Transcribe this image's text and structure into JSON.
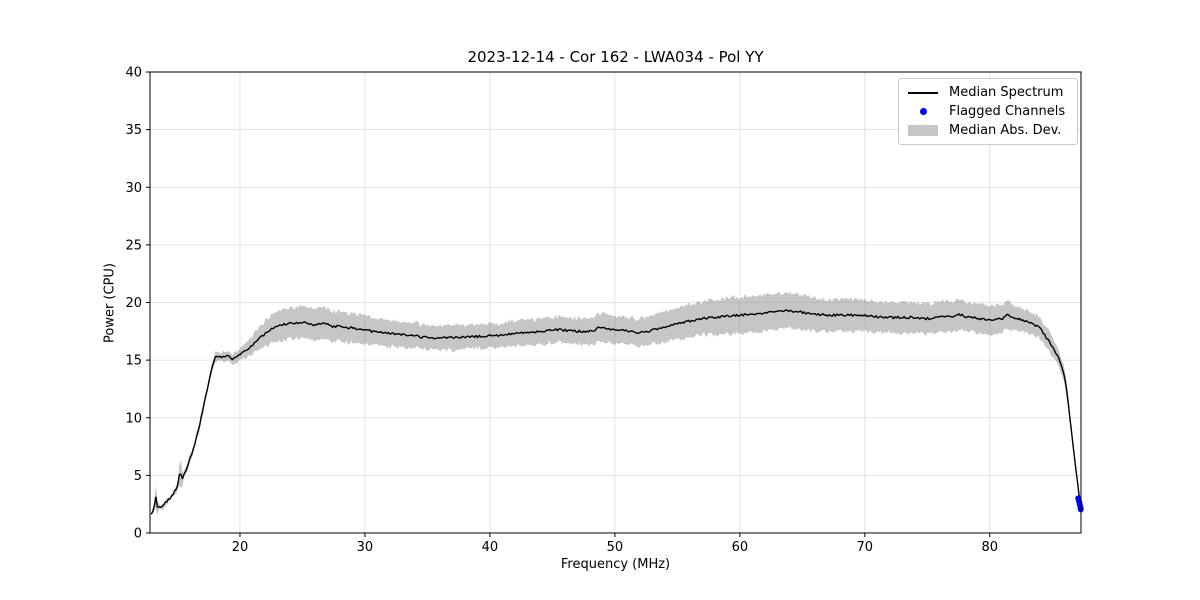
{
  "chart_data": {
    "type": "line",
    "title": "2023-12-14 - Cor 162 - LWA034 - Pol YY",
    "xlabel": "Frequency (MHz)",
    "ylabel": "Power (CPU)",
    "xlim": [
      12.8,
      87.3
    ],
    "ylim": [
      0,
      40
    ],
    "xticks": [
      20,
      30,
      40,
      50,
      60,
      70,
      80
    ],
    "yticks": [
      0,
      5,
      10,
      15,
      20,
      25,
      30,
      35,
      40
    ],
    "grid": true,
    "legend_position": "upper right",
    "legend": [
      {
        "label": "Median Spectrum",
        "type": "line",
        "color": "#000000"
      },
      {
        "label": "Flagged Channels",
        "type": "dot",
        "color": "#0000ff"
      },
      {
        "label": "Median Abs. Dev.",
        "type": "band",
        "color": "rgba(128,128,128,0.45)"
      }
    ],
    "series": {
      "median_spectrum": {
        "name": "Median Spectrum",
        "color": "#000000",
        "control_points": [
          [
            12.9,
            1.6
          ],
          [
            13.1,
            2.0
          ],
          [
            13.25,
            3.3
          ],
          [
            13.4,
            2.2
          ],
          [
            13.8,
            2.4
          ],
          [
            14.2,
            2.8
          ],
          [
            14.6,
            3.3
          ],
          [
            15.0,
            4.0
          ],
          [
            15.2,
            5.3
          ],
          [
            15.4,
            4.8
          ],
          [
            15.8,
            5.8
          ],
          [
            16.2,
            7.0
          ],
          [
            16.6,
            8.6
          ],
          [
            17.0,
            10.5
          ],
          [
            17.4,
            12.6
          ],
          [
            17.8,
            14.6
          ],
          [
            18.0,
            15.2
          ],
          [
            18.3,
            15.4
          ],
          [
            18.6,
            15.3
          ],
          [
            19.0,
            15.4
          ],
          [
            19.35,
            15.05
          ],
          [
            19.6,
            15.3
          ],
          [
            20.0,
            15.5
          ],
          [
            20.5,
            15.8
          ],
          [
            21.0,
            16.3
          ],
          [
            21.5,
            16.8
          ],
          [
            22.0,
            17.3
          ],
          [
            22.5,
            17.7
          ],
          [
            23.0,
            18.0
          ],
          [
            23.5,
            18.1
          ],
          [
            24.0,
            18.2
          ],
          [
            24.5,
            18.25
          ],
          [
            25.0,
            18.3
          ],
          [
            25.5,
            18.1
          ],
          [
            26.0,
            18.0
          ],
          [
            26.5,
            18.2
          ],
          [
            27.0,
            18.1
          ],
          [
            27.5,
            17.9
          ],
          [
            28.0,
            18.0
          ],
          [
            28.5,
            17.8
          ],
          [
            29.0,
            17.8
          ],
          [
            29.5,
            17.7
          ],
          [
            30.0,
            17.7
          ],
          [
            30.5,
            17.5
          ],
          [
            31.0,
            17.5
          ],
          [
            31.5,
            17.4
          ],
          [
            32.0,
            17.3
          ],
          [
            32.5,
            17.3
          ],
          [
            33.0,
            17.2
          ],
          [
            33.5,
            17.1
          ],
          [
            34.0,
            17.1
          ],
          [
            34.5,
            17.0
          ],
          [
            35.0,
            17.0
          ],
          [
            35.5,
            16.95
          ],
          [
            36.0,
            16.9
          ],
          [
            36.5,
            16.95
          ],
          [
            37.0,
            17.0
          ],
          [
            37.5,
            17.0
          ],
          [
            38.0,
            17.0
          ],
          [
            38.5,
            17.0
          ],
          [
            39.0,
            17.05
          ],
          [
            39.5,
            17.05
          ],
          [
            40.0,
            17.1
          ],
          [
            41.0,
            17.2
          ],
          [
            42.0,
            17.3
          ],
          [
            43.0,
            17.4
          ],
          [
            44.0,
            17.5
          ],
          [
            45.0,
            17.6
          ],
          [
            45.5,
            17.65
          ],
          [
            46.0,
            17.6
          ],
          [
            46.5,
            17.55
          ],
          [
            47.0,
            17.5
          ],
          [
            47.5,
            17.5
          ],
          [
            48.0,
            17.5
          ],
          [
            48.4,
            17.55
          ],
          [
            48.6,
            17.8
          ],
          [
            49.0,
            17.75
          ],
          [
            49.5,
            17.7
          ],
          [
            50.0,
            17.7
          ],
          [
            50.5,
            17.6
          ],
          [
            51.0,
            17.5
          ],
          [
            51.5,
            17.45
          ],
          [
            52.0,
            17.4
          ],
          [
            52.3,
            17.5
          ],
          [
            52.6,
            17.45
          ],
          [
            53.0,
            17.6
          ],
          [
            53.5,
            17.75
          ],
          [
            54.0,
            17.9
          ],
          [
            54.5,
            18.05
          ],
          [
            55.0,
            18.2
          ],
          [
            55.5,
            18.3
          ],
          [
            56.0,
            18.4
          ],
          [
            56.5,
            18.5
          ],
          [
            57.0,
            18.6
          ],
          [
            57.5,
            18.65
          ],
          [
            58.0,
            18.7
          ],
          [
            58.5,
            18.75
          ],
          [
            59.0,
            18.8
          ],
          [
            59.5,
            18.85
          ],
          [
            60.0,
            18.9
          ],
          [
            60.5,
            18.95
          ],
          [
            61.0,
            19.0
          ],
          [
            61.5,
            19.05
          ],
          [
            62.0,
            19.1
          ],
          [
            62.5,
            19.2
          ],
          [
            63.0,
            19.3
          ],
          [
            63.5,
            19.3
          ],
          [
            64.0,
            19.25
          ],
          [
            64.5,
            19.2
          ],
          [
            65.0,
            19.15
          ],
          [
            65.5,
            19.05
          ],
          [
            66.0,
            19.0
          ],
          [
            66.5,
            18.95
          ],
          [
            67.0,
            18.9
          ],
          [
            67.5,
            18.9
          ],
          [
            68.0,
            18.9
          ],
          [
            68.5,
            18.9
          ],
          [
            69.0,
            18.9
          ],
          [
            69.5,
            18.85
          ],
          [
            70.0,
            18.85
          ],
          [
            70.5,
            18.8
          ],
          [
            71.0,
            18.75
          ],
          [
            71.5,
            18.7
          ],
          [
            72.0,
            18.7
          ],
          [
            72.5,
            18.7
          ],
          [
            73.0,
            18.7
          ],
          [
            73.5,
            18.7
          ],
          [
            74.0,
            18.7
          ],
          [
            74.5,
            18.65
          ],
          [
            75.0,
            18.6
          ],
          [
            75.5,
            18.65
          ],
          [
            76.0,
            18.7
          ],
          [
            76.5,
            18.75
          ],
          [
            77.0,
            18.8
          ],
          [
            77.4,
            19.0
          ],
          [
            77.7,
            18.9
          ],
          [
            78.0,
            18.8
          ],
          [
            78.5,
            18.7
          ],
          [
            79.0,
            18.6
          ],
          [
            79.5,
            18.55
          ],
          [
            80.0,
            18.5
          ],
          [
            80.5,
            18.55
          ],
          [
            81.0,
            18.6
          ],
          [
            81.4,
            18.9
          ],
          [
            81.8,
            18.7
          ],
          [
            82.2,
            18.6
          ],
          [
            82.6,
            18.45
          ],
          [
            83.0,
            18.3
          ],
          [
            83.5,
            18.1
          ],
          [
            84.0,
            17.8
          ],
          [
            84.5,
            17.0
          ],
          [
            85.0,
            16.2
          ],
          [
            85.3,
            15.6
          ],
          [
            85.6,
            15.0
          ],
          [
            85.9,
            14.0
          ],
          [
            86.1,
            12.8
          ],
          [
            86.3,
            11.0
          ],
          [
            86.5,
            9.2
          ],
          [
            86.7,
            7.3
          ],
          [
            86.9,
            5.5
          ],
          [
            87.0,
            4.5
          ],
          [
            87.1,
            3.6
          ],
          [
            87.2,
            2.9
          ],
          [
            87.3,
            2.3
          ]
        ]
      },
      "mad_band": {
        "name": "Median Abs. Dev.",
        "color": "rgba(128,128,128,0.45)",
        "half_width_control_points": [
          [
            12.9,
            0.15
          ],
          [
            13.1,
            0.3
          ],
          [
            13.25,
            1.2
          ],
          [
            13.5,
            0.2
          ],
          [
            14.5,
            0.2
          ],
          [
            15.0,
            0.3
          ],
          [
            15.2,
            1.3
          ],
          [
            15.5,
            0.3
          ],
          [
            16.5,
            0.3
          ],
          [
            17.5,
            0.3
          ],
          [
            18.0,
            0.35
          ],
          [
            19.0,
            0.4
          ],
          [
            20.0,
            0.5
          ],
          [
            21.0,
            0.8
          ],
          [
            22.0,
            1.1
          ],
          [
            23.0,
            1.3
          ],
          [
            24.0,
            1.35
          ],
          [
            25.0,
            1.4
          ],
          [
            26.0,
            1.35
          ],
          [
            27.0,
            1.35
          ],
          [
            28.0,
            1.3
          ],
          [
            29.0,
            1.25
          ],
          [
            30.0,
            1.25
          ],
          [
            31.0,
            1.2
          ],
          [
            32.0,
            1.15
          ],
          [
            33.0,
            1.1
          ],
          [
            34.0,
            1.1
          ],
          [
            35.0,
            1.05
          ],
          [
            36.0,
            1.05
          ],
          [
            37.0,
            1.05
          ],
          [
            38.0,
            1.05
          ],
          [
            39.0,
            1.05
          ],
          [
            40.0,
            1.05
          ],
          [
            41.0,
            1.05
          ],
          [
            42.0,
            1.1
          ],
          [
            43.0,
            1.1
          ],
          [
            44.0,
            1.1
          ],
          [
            45.0,
            1.1
          ],
          [
            46.0,
            1.1
          ],
          [
            47.0,
            1.1
          ],
          [
            48.0,
            1.15
          ],
          [
            49.0,
            1.2
          ],
          [
            50.0,
            1.2
          ],
          [
            51.0,
            1.2
          ],
          [
            52.0,
            1.2
          ],
          [
            53.0,
            1.25
          ],
          [
            54.0,
            1.3
          ],
          [
            55.0,
            1.35
          ],
          [
            56.0,
            1.4
          ],
          [
            57.0,
            1.45
          ],
          [
            58.0,
            1.5
          ],
          [
            59.0,
            1.55
          ],
          [
            60.0,
            1.6
          ],
          [
            61.0,
            1.6
          ],
          [
            62.0,
            1.55
          ],
          [
            63.0,
            1.55
          ],
          [
            64.0,
            1.5
          ],
          [
            65.0,
            1.5
          ],
          [
            66.0,
            1.45
          ],
          [
            67.0,
            1.4
          ],
          [
            68.0,
            1.4
          ],
          [
            69.0,
            1.4
          ],
          [
            70.0,
            1.4
          ],
          [
            71.0,
            1.35
          ],
          [
            72.0,
            1.35
          ],
          [
            73.0,
            1.35
          ],
          [
            74.0,
            1.3
          ],
          [
            75.0,
            1.3
          ],
          [
            76.0,
            1.3
          ],
          [
            77.0,
            1.3
          ],
          [
            78.0,
            1.3
          ],
          [
            79.0,
            1.25
          ],
          [
            80.0,
            1.25
          ],
          [
            81.0,
            1.2
          ],
          [
            82.0,
            1.1
          ],
          [
            83.0,
            1.0
          ],
          [
            84.0,
            0.9
          ],
          [
            85.0,
            0.8
          ],
          [
            85.5,
            0.7
          ],
          [
            86.0,
            0.6
          ],
          [
            86.5,
            0.45
          ],
          [
            87.0,
            0.3
          ],
          [
            87.3,
            0.2
          ]
        ]
      },
      "flagged_channels": {
        "name": "Flagged Channels",
        "color": "#0000ff",
        "points": [
          [
            87.08,
            3.0
          ],
          [
            87.14,
            2.75
          ],
          [
            87.2,
            2.5
          ],
          [
            87.25,
            2.25
          ],
          [
            87.28,
            2.05
          ]
        ]
      }
    },
    "style": {
      "grid_color": "#dcdcdc",
      "spine_color": "#000000",
      "line_width": 1.4,
      "flag_dot_radius": 3,
      "noise_seed": 42,
      "line_noise_amp": 0.1,
      "band_noise_amp": 0.16,
      "sample_step_mhz": 0.125
    }
  }
}
